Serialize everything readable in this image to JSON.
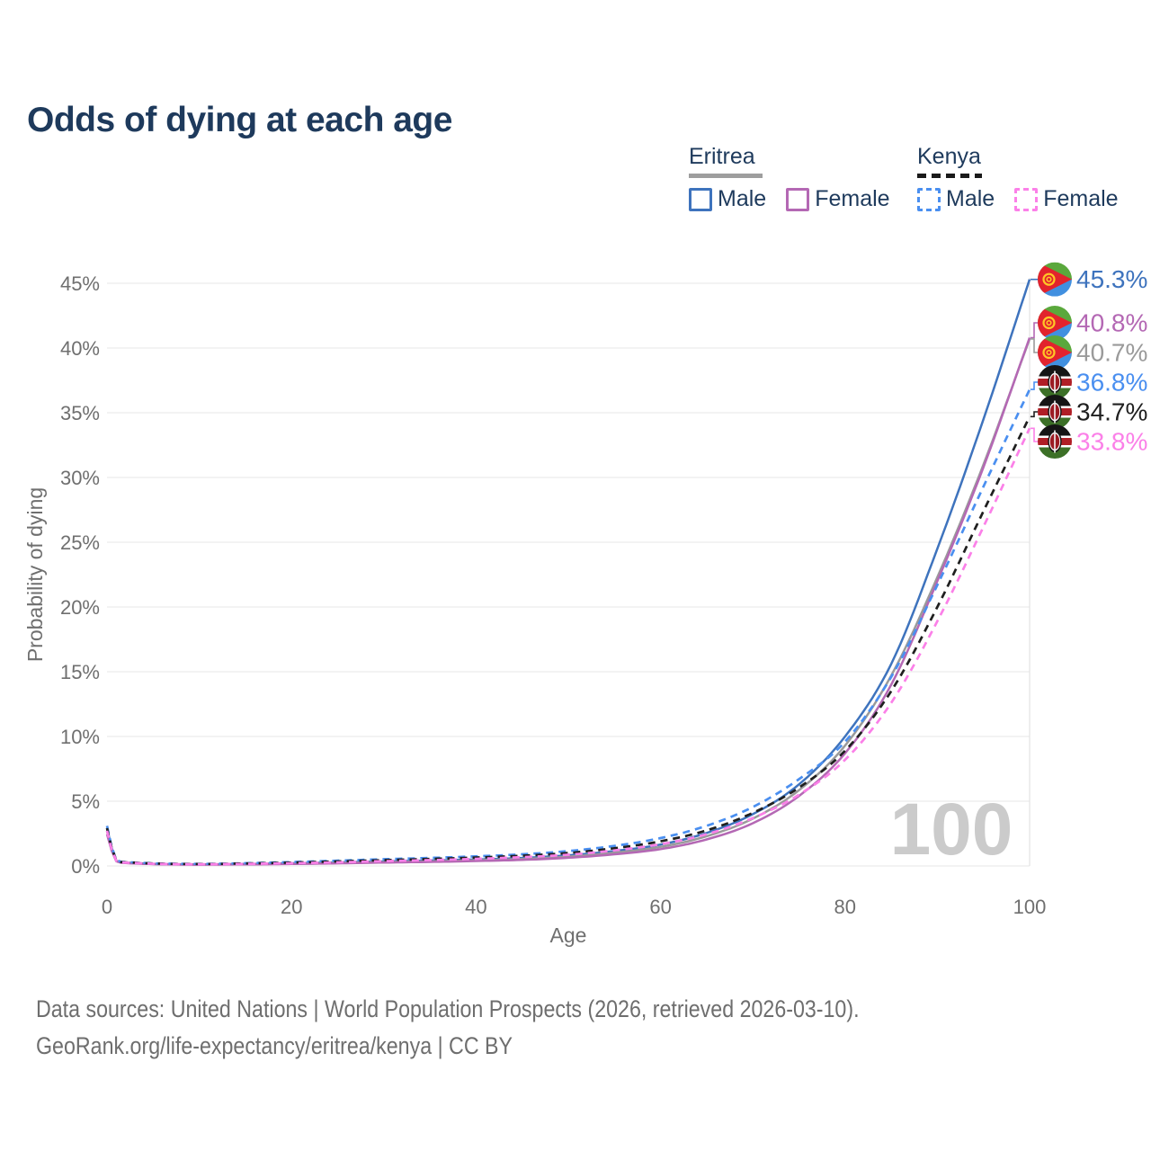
{
  "title": "Odds of dying at each age",
  "legend": {
    "groups": [
      {
        "title": "Eritrea",
        "style": "solid",
        "items": [
          {
            "label": "Male",
            "series": "eritrea_male"
          },
          {
            "label": "Female",
            "series": "eritrea_female"
          }
        ]
      },
      {
        "title": "Kenya",
        "style": "dashed",
        "items": [
          {
            "label": "Male",
            "series": "kenya_male"
          },
          {
            "label": "Female",
            "series": "kenya_female"
          }
        ]
      }
    ]
  },
  "watermark": "100",
  "footer": {
    "line1": "Data sources: United Nations | World Population Prospects (2026, retrieved 2026-03-10).",
    "line2": "GeoRank.org/life-expectancy/eritrea/kenya | CC BY"
  },
  "colors": {
    "title": "#1e3a5c",
    "legend_text": "#1e3a5c",
    "axis_text": "#6f6f6f",
    "gridline": "#ececec",
    "marker_line": "#e4e4e4",
    "watermark": "#cbcbcb",
    "footer_text": "#6e6e6e",
    "eritrea_underline": "#9e9e9e",
    "kenya_underline": "#1a1a1a"
  },
  "chart_data": {
    "type": "line",
    "title": "Odds of dying at each age",
    "xlabel": "Age",
    "ylabel": "Probability of dying",
    "xlim": [
      0,
      100
    ],
    "ylim": [
      0,
      45
    ],
    "x_ticks": [
      0,
      20,
      40,
      60,
      80,
      100
    ],
    "y_ticks": [
      0,
      5,
      10,
      15,
      20,
      25,
      30,
      35,
      40,
      45
    ],
    "y_tick_suffix": "%",
    "grid": "horizontal",
    "marker_age": 100,
    "legend_position": "top-right",
    "x": [
      0,
      1,
      2,
      5,
      10,
      15,
      20,
      25,
      30,
      35,
      40,
      45,
      50,
      55,
      60,
      65,
      70,
      75,
      80,
      85,
      90,
      95,
      100
    ],
    "series": [
      {
        "id": "eritrea_male",
        "name": "Eritrea Male",
        "country": "Eritrea",
        "sex": "Male",
        "color": "#3e73bd",
        "dash": false,
        "flag": "eritrea",
        "end_label": "45.3%",
        "values": [
          2.9,
          0.42,
          0.26,
          0.16,
          0.12,
          0.15,
          0.21,
          0.28,
          0.35,
          0.42,
          0.5,
          0.62,
          0.82,
          1.15,
          1.65,
          2.55,
          4.0,
          6.3,
          10.0,
          15.6,
          24.5,
          34.5,
          45.3
        ]
      },
      {
        "id": "eritrea_total",
        "name": "Eritrea",
        "country": "Eritrea",
        "sex": "Both",
        "color": "#9a9a9a",
        "dash": false,
        "flag": "eritrea",
        "end_label": "40.7%",
        "values": [
          2.68,
          0.39,
          0.24,
          0.15,
          0.11,
          0.13,
          0.18,
          0.24,
          0.3,
          0.36,
          0.44,
          0.54,
          0.72,
          1.02,
          1.47,
          2.3,
          3.65,
          5.85,
          9.3,
          14.7,
          22.3,
          31.0,
          40.7
        ]
      },
      {
        "id": "eritrea_female",
        "name": "Eritrea Female",
        "country": "Eritrea",
        "sex": "Female",
        "color": "#b468b4",
        "dash": false,
        "flag": "eritrea",
        "end_label": "40.8%",
        "values": [
          2.45,
          0.36,
          0.22,
          0.14,
          0.1,
          0.12,
          0.15,
          0.2,
          0.26,
          0.31,
          0.38,
          0.47,
          0.63,
          0.9,
          1.3,
          2.05,
          3.3,
          5.4,
          8.7,
          14.0,
          22.0,
          30.8,
          40.8
        ]
      },
      {
        "id": "kenya_male",
        "name": "Kenya Male",
        "country": "Kenya",
        "sex": "Male",
        "color": "#4a8ff0",
        "dash": true,
        "flag": "kenya",
        "end_label": "36.8%",
        "values": [
          3.1,
          0.46,
          0.3,
          0.2,
          0.16,
          0.21,
          0.3,
          0.41,
          0.52,
          0.62,
          0.74,
          0.9,
          1.15,
          1.55,
          2.15,
          3.1,
          4.55,
          6.7,
          9.6,
          14.6,
          21.7,
          29.3,
          36.8
        ]
      },
      {
        "id": "kenya_total",
        "name": "Kenya",
        "country": "Kenya",
        "sex": "Both",
        "color": "#1f1f1f",
        "dash": true,
        "flag": "kenya",
        "end_label": "34.7%",
        "values": [
          2.92,
          0.43,
          0.28,
          0.19,
          0.15,
          0.19,
          0.26,
          0.35,
          0.45,
          0.54,
          0.65,
          0.79,
          1.0,
          1.37,
          1.9,
          2.75,
          4.1,
          6.05,
          8.9,
          13.5,
          20.0,
          27.4,
          34.7
        ]
      },
      {
        "id": "kenya_female",
        "name": "Kenya Female",
        "country": "Kenya",
        "sex": "Female",
        "color": "#fb80e8",
        "dash": true,
        "flag": "kenya",
        "end_label": "33.8%",
        "values": [
          2.72,
          0.4,
          0.26,
          0.17,
          0.13,
          0.16,
          0.21,
          0.28,
          0.37,
          0.45,
          0.55,
          0.68,
          0.87,
          1.2,
          1.68,
          2.45,
          3.7,
          5.5,
          8.2,
          12.6,
          18.9,
          26.2,
          33.8
        ]
      }
    ]
  }
}
